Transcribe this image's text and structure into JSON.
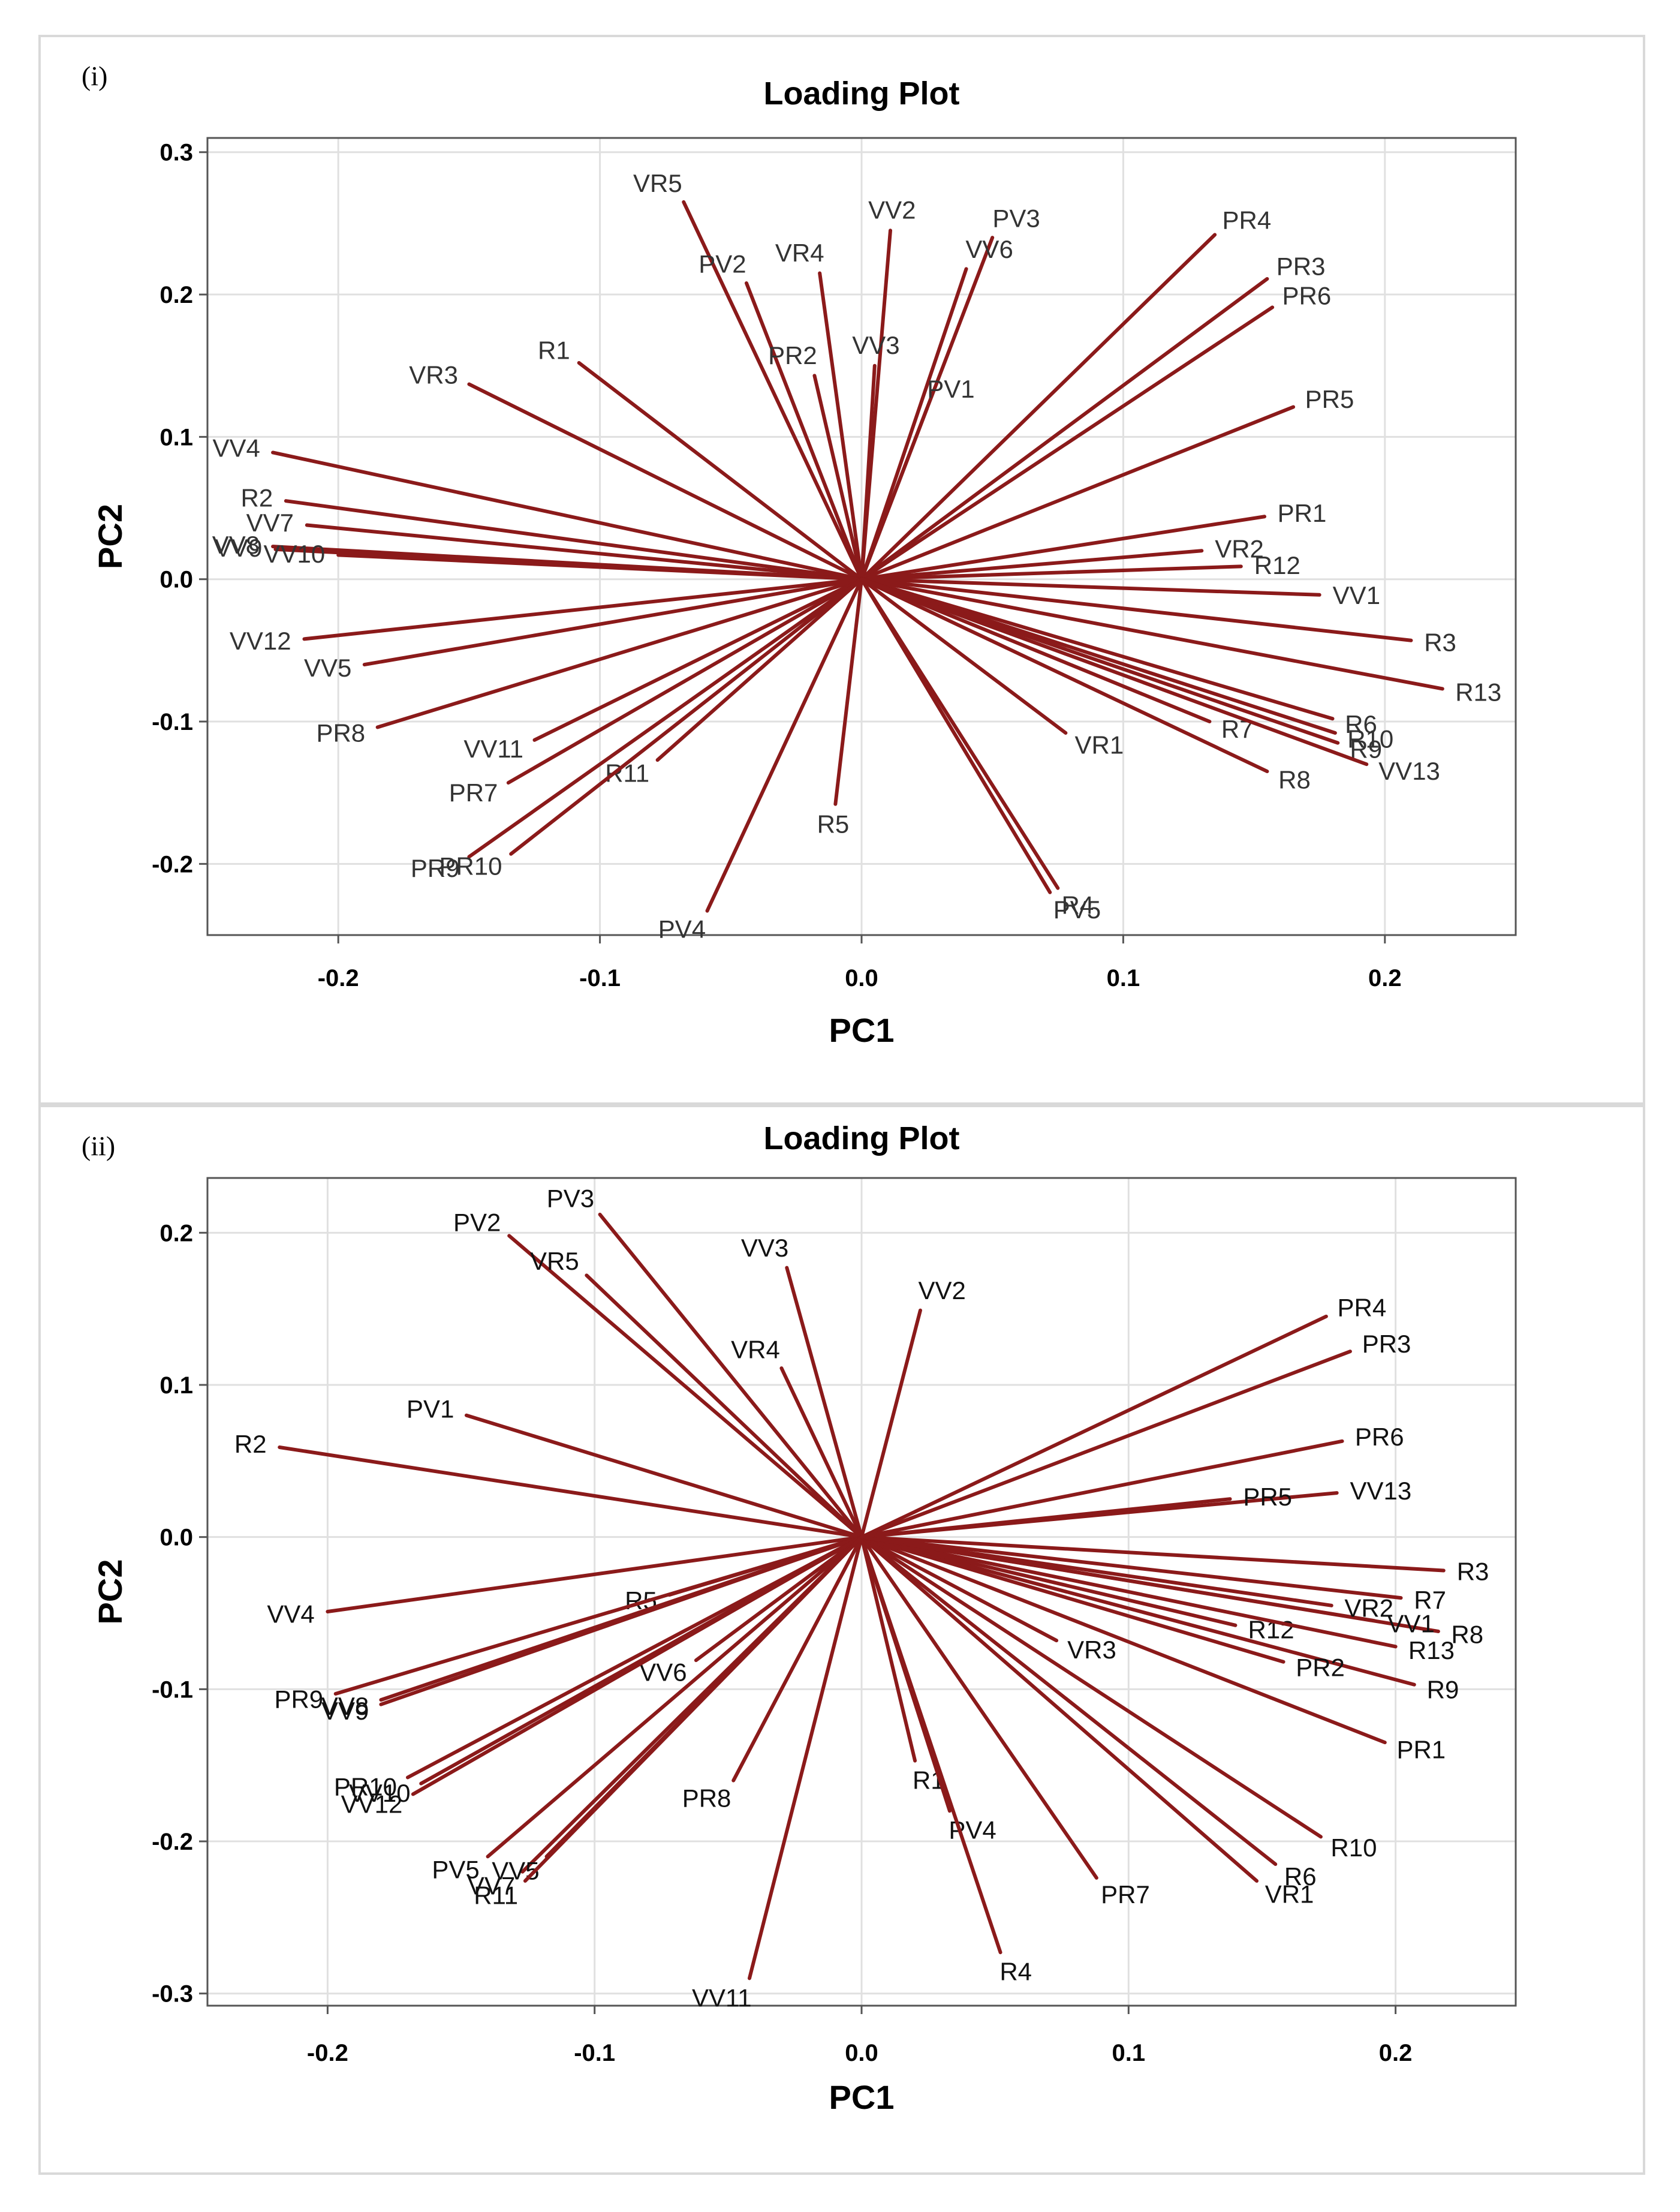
{
  "panels": [
    {
      "label": "(i)"
    },
    {
      "label": "(ii)"
    }
  ],
  "colors": {
    "vector": "#8b1a1a",
    "grid": "#e0e0e0",
    "frame": "#555555",
    "label1": "#333333",
    "label2": "#111111"
  },
  "chart_data": [
    {
      "type": "loading-plot",
      "title": "Loading Plot",
      "xlabel": "PC1",
      "ylabel": "PC2",
      "xlim": [
        -0.25,
        0.25
      ],
      "ylim": [
        -0.25,
        0.31
      ],
      "xticks": [
        -0.2,
        -0.1,
        0.0,
        0.1,
        0.2
      ],
      "xtick_labels": [
        "-0.2",
        "-0.1",
        "0.0",
        "0.1",
        "0.2"
      ],
      "yticks": [
        -0.2,
        -0.1,
        0.0,
        0.1,
        0.2,
        0.3
      ],
      "ytick_labels": [
        "-0.2",
        "-0.1",
        "0.0",
        "0.1",
        "0.2",
        "0.3"
      ],
      "grid": true,
      "vectors": [
        {
          "name": "VR5",
          "x": -0.068,
          "y": 0.265
        },
        {
          "name": "VV2",
          "x": 0.011,
          "y": 0.245
        },
        {
          "name": "PV3",
          "x": 0.05,
          "y": 0.24
        },
        {
          "name": "VV6",
          "x": 0.04,
          "y": 0.218
        },
        {
          "name": "PV2",
          "x": -0.044,
          "y": 0.208
        },
        {
          "name": "VR4",
          "x": -0.016,
          "y": 0.215
        },
        {
          "name": "PR2",
          "x": -0.018,
          "y": 0.143
        },
        {
          "name": "VV3",
          "x": 0.005,
          "y": 0.15
        },
        {
          "name": "PV1",
          "x": 0.025,
          "y": 0.12
        },
        {
          "name": "R1",
          "x": -0.108,
          "y": 0.152
        },
        {
          "name": "VR3",
          "x": -0.15,
          "y": 0.137
        },
        {
          "name": "VV4",
          "x": -0.225,
          "y": 0.089
        },
        {
          "name": "R2",
          "x": -0.22,
          "y": 0.055
        },
        {
          "name": "VV7",
          "x": -0.212,
          "y": 0.038
        },
        {
          "name": "VV8",
          "x": -0.225,
          "y": 0.023
        },
        {
          "name": "VV9",
          "x": -0.224,
          "y": 0.021
        },
        {
          "name": "VV10",
          "x": -0.2,
          "y": 0.017
        },
        {
          "name": "VV12",
          "x": -0.213,
          "y": -0.042
        },
        {
          "name": "VV5",
          "x": -0.19,
          "y": -0.06
        },
        {
          "name": "PR8",
          "x": -0.185,
          "y": -0.104
        },
        {
          "name": "VV11",
          "x": -0.125,
          "y": -0.113
        },
        {
          "name": "PR7",
          "x": -0.135,
          "y": -0.143
        },
        {
          "name": "R11",
          "x": -0.078,
          "y": -0.127
        },
        {
          "name": "PR9",
          "x": -0.15,
          "y": -0.195
        },
        {
          "name": "PR10",
          "x": -0.134,
          "y": -0.193
        },
        {
          "name": "PV4",
          "x": -0.059,
          "y": -0.233
        },
        {
          "name": "R5",
          "x": -0.01,
          "y": -0.158
        },
        {
          "name": "PV5",
          "x": 0.072,
          "y": -0.22
        },
        {
          "name": "R4",
          "x": 0.075,
          "y": -0.217
        },
        {
          "name": "VR1",
          "x": 0.078,
          "y": -0.108
        },
        {
          "name": "PR4",
          "x": 0.135,
          "y": 0.242
        },
        {
          "name": "PR3",
          "x": 0.155,
          "y": 0.211
        },
        {
          "name": "PR6",
          "x": 0.157,
          "y": 0.191
        },
        {
          "name": "PR5",
          "x": 0.165,
          "y": 0.121
        },
        {
          "name": "PR1",
          "x": 0.154,
          "y": 0.044
        },
        {
          "name": "VR2",
          "x": 0.13,
          "y": 0.02
        },
        {
          "name": "R12",
          "x": 0.145,
          "y": 0.009
        },
        {
          "name": "VV1",
          "x": 0.175,
          "y": -0.011
        },
        {
          "name": "R3",
          "x": 0.21,
          "y": -0.043
        },
        {
          "name": "R13",
          "x": 0.222,
          "y": -0.077
        },
        {
          "name": "R6",
          "x": 0.18,
          "y": -0.098
        },
        {
          "name": "R10",
          "x": 0.181,
          "y": -0.108
        },
        {
          "name": "R7",
          "x": 0.133,
          "y": -0.1
        },
        {
          "name": "R9",
          "x": 0.182,
          "y": -0.115
        },
        {
          "name": "R8",
          "x": 0.155,
          "y": -0.135
        },
        {
          "name": "VV13",
          "x": 0.193,
          "y": -0.13
        }
      ]
    },
    {
      "type": "loading-plot",
      "title": "Loading Plot",
      "xlabel": "PC1",
      "ylabel": "PC2",
      "xlim": [
        -0.245,
        0.245
      ],
      "ylim": [
        -0.308,
        0.236
      ],
      "xticks": [
        -0.2,
        -0.1,
        0.0,
        0.1,
        0.2
      ],
      "xtick_labels": [
        "-0.2",
        "-0.1",
        "0.0",
        "0.1",
        "0.2"
      ],
      "yticks": [
        -0.3,
        -0.2,
        -0.1,
        0.0,
        0.1,
        0.2
      ],
      "ytick_labels": [
        "-0.3",
        "-0.2",
        "-0.1",
        "0.0",
        "0.1",
        "0.2"
      ],
      "grid": true,
      "vectors": [
        {
          "name": "PV3",
          "x": -0.098,
          "y": 0.212
        },
        {
          "name": "PV2",
          "x": -0.132,
          "y": 0.198
        },
        {
          "name": "VR5",
          "x": -0.103,
          "y": 0.172
        },
        {
          "name": "VV3",
          "x": -0.028,
          "y": 0.177
        },
        {
          "name": "VV2",
          "x": 0.022,
          "y": 0.149
        },
        {
          "name": "VR4",
          "x": -0.03,
          "y": 0.111
        },
        {
          "name": "PV1",
          "x": -0.148,
          "y": 0.08
        },
        {
          "name": "R2",
          "x": -0.218,
          "y": 0.059
        },
        {
          "name": "VV4",
          "x": -0.2,
          "y": -0.049
        },
        {
          "name": "R5",
          "x": -0.072,
          "y": -0.038
        },
        {
          "name": "VV6",
          "x": -0.062,
          "y": -0.081
        },
        {
          "name": "PR9",
          "x": -0.197,
          "y": -0.103
        },
        {
          "name": "VV8",
          "x": -0.18,
          "y": -0.107
        },
        {
          "name": "VV9",
          "x": -0.18,
          "y": -0.11
        },
        {
          "name": "PR10",
          "x": -0.17,
          "y": -0.158
        },
        {
          "name": "VV10",
          "x": -0.165,
          "y": -0.162
        },
        {
          "name": "VV12",
          "x": -0.168,
          "y": -0.169
        },
        {
          "name": "PR8",
          "x": -0.048,
          "y": -0.16
        },
        {
          "name": "PV5",
          "x": -0.14,
          "y": -0.21
        },
        {
          "name": "VV7",
          "x": -0.127,
          "y": -0.22
        },
        {
          "name": "VV5",
          "x": -0.118,
          "y": -0.21
        },
        {
          "name": "R11",
          "x": -0.126,
          "y": -0.226
        },
        {
          "name": "VV11",
          "x": -0.042,
          "y": -0.29
        },
        {
          "name": "R1",
          "x": 0.02,
          "y": -0.147
        },
        {
          "name": "PV4",
          "x": 0.033,
          "y": -0.18
        },
        {
          "name": "R4",
          "x": 0.052,
          "y": -0.273
        },
        {
          "name": "PR7",
          "x": 0.088,
          "y": -0.224
        },
        {
          "name": "VR3",
          "x": 0.073,
          "y": -0.068
        },
        {
          "name": "VR1",
          "x": 0.148,
          "y": -0.226
        },
        {
          "name": "R6",
          "x": 0.155,
          "y": -0.215
        },
        {
          "name": "R10",
          "x": 0.172,
          "y": -0.197
        },
        {
          "name": "PR1",
          "x": 0.196,
          "y": -0.135
        },
        {
          "name": "R9",
          "x": 0.207,
          "y": -0.097
        },
        {
          "name": "PR2",
          "x": 0.158,
          "y": -0.082
        },
        {
          "name": "R12",
          "x": 0.14,
          "y": -0.058
        },
        {
          "name": "R13",
          "x": 0.2,
          "y": -0.072
        },
        {
          "name": "R8",
          "x": 0.216,
          "y": -0.062
        },
        {
          "name": "VV1",
          "x": 0.192,
          "y": -0.055
        },
        {
          "name": "VR2",
          "x": 0.176,
          "y": -0.045
        },
        {
          "name": "R7",
          "x": 0.202,
          "y": -0.04
        },
        {
          "name": "R3",
          "x": 0.218,
          "y": -0.022
        },
        {
          "name": "VV13",
          "x": 0.178,
          "y": 0.029
        },
        {
          "name": "PR5",
          "x": 0.138,
          "y": 0.025
        },
        {
          "name": "PR6",
          "x": 0.18,
          "y": 0.063
        },
        {
          "name": "PR3",
          "x": 0.183,
          "y": 0.122
        },
        {
          "name": "PR4",
          "x": 0.174,
          "y": 0.145
        }
      ]
    }
  ]
}
